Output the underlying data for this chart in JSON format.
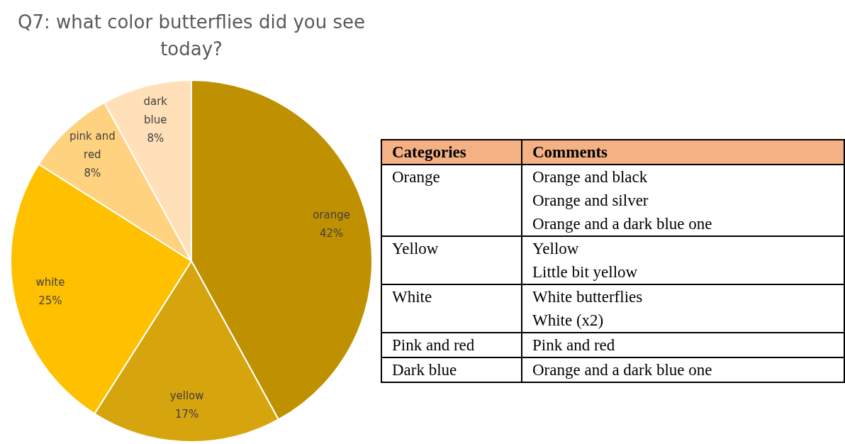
{
  "chart_data": [
    {
      "type": "pie",
      "title": "Q7: what color butterflies did you see today?",
      "categories": [
        "orange",
        "yellow",
        "white",
        "pink and red",
        "dark blue"
      ],
      "values": [
        42,
        17,
        25,
        8,
        8
      ],
      "value_labels": [
        "42%",
        "17%",
        "25%",
        "8%",
        "8%"
      ],
      "colors": [
        "#bf9000",
        "#d6a40c",
        "#ffc000",
        "#ffd27f",
        "#ffe0b8"
      ],
      "legend": false
    },
    {
      "type": "other",
      "color": "#f4b183",
      "categories": [
        "Categories",
        "Comments"
      ],
      "y_categories": [
        "Orange",
        "Yellow",
        "White",
        "Pink and red",
        "Dark blue"
      ],
      "cell_labels": [
        [
          "Orange and black\nOrange and silver\nOrange and a dark blue one"
        ],
        [
          "Yellow\nLittle bit yellow"
        ],
        [
          "White butterflies\nWhite (x2)"
        ],
        [
          "Pink and red"
        ],
        [
          "Orange and a dark blue one"
        ]
      ]
    }
  ]
}
